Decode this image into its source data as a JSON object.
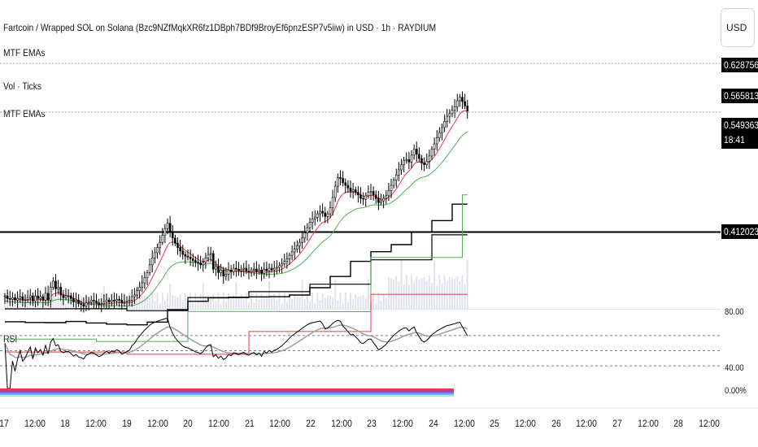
{
  "header": {
    "title": "Fartcoin / Wrapped SOL on Solana (Bzc9NZfMqkXR6fz1DBph7BDf9BroyEf6pnzESP7v5iiw) in USD · 1h · RAYDIUM",
    "currency": "USD"
  },
  "indicators": [
    "MTF EMAs",
    "Vol · Ticks",
    "MTF EMAs",
    "RSI"
  ],
  "price_tags": [
    {
      "label": "0.628756",
      "color": "#000000"
    },
    {
      "label": "0.565813",
      "color": "#000000"
    },
    {
      "label": "0.549363",
      "color": "#000000"
    },
    {
      "label": "18:41",
      "color": "#000000"
    },
    {
      "label": "0.412023",
      "color": "#000000"
    }
  ],
  "rsi_axis": [
    "80.00",
    "40.00",
    "0.00%"
  ],
  "time_axis": [
    "17",
    "12:00",
    "18",
    "12:00",
    "19",
    "12:00",
    "20",
    "12:00",
    "21",
    "12:00",
    "22",
    "12:00",
    "23",
    "12:00",
    "24",
    "12:00",
    "25",
    "12:00",
    "26",
    "12:00",
    "27",
    "12:00",
    "28",
    "12:00"
  ],
  "colors": {
    "ema_red": "#f23645",
    "ema_green": "#4caf50",
    "htf_line": "#000000",
    "rsi": "#000000",
    "rsi_ma": "#9e9e9e",
    "volume": "#e0e3eb"
  },
  "chart_data": {
    "type": "candlestick",
    "x_start": "17 Jan 00:00",
    "x_step": "1h",
    "horizontal_lines": [
      0.628756,
      0.565813,
      0.412023
    ],
    "close": [
      0.335,
      0.332,
      0.331,
      0.333,
      0.33,
      0.332,
      0.334,
      0.33,
      0.331,
      0.333,
      0.335,
      0.329,
      0.335,
      0.332,
      0.334,
      0.33,
      0.338,
      0.33,
      0.345,
      0.352,
      0.343,
      0.345,
      0.336,
      0.333,
      0.335,
      0.335,
      0.332,
      0.328,
      0.33,
      0.326,
      0.325,
      0.323,
      0.327,
      0.328,
      0.33,
      0.329,
      0.327,
      0.325,
      0.326,
      0.328,
      0.33,
      0.328,
      0.33,
      0.329,
      0.331,
      0.33,
      0.327,
      0.328,
      0.329,
      0.33,
      0.334,
      0.336,
      0.341,
      0.345,
      0.35,
      0.356,
      0.362,
      0.371,
      0.379,
      0.385,
      0.391,
      0.397,
      0.405,
      0.413,
      0.419,
      0.409,
      0.402,
      0.396,
      0.391,
      0.387,
      0.383,
      0.381,
      0.38,
      0.378,
      0.376,
      0.374,
      0.373,
      0.371,
      0.374,
      0.379,
      0.383,
      0.384,
      0.366,
      0.369,
      0.362,
      0.365,
      0.358,
      0.36,
      0.365,
      0.363,
      0.367,
      0.366,
      0.364,
      0.366,
      0.367,
      0.364,
      0.363,
      0.365,
      0.366,
      0.363,
      0.365,
      0.361,
      0.366,
      0.364,
      0.367,
      0.365,
      0.367,
      0.368,
      0.37,
      0.372,
      0.375,
      0.378,
      0.382,
      0.386,
      0.389,
      0.393,
      0.397,
      0.402,
      0.408,
      0.414,
      0.42,
      0.424,
      0.426,
      0.43,
      0.433,
      0.431,
      0.427,
      0.43,
      0.437,
      0.449,
      0.462,
      0.472,
      0.471,
      0.466,
      0.463,
      0.46,
      0.456,
      0.458,
      0.455,
      0.452,
      0.448,
      0.447,
      0.451,
      0.455,
      0.456,
      0.452,
      0.448,
      0.443,
      0.445,
      0.448,
      0.451,
      0.457,
      0.463,
      0.469,
      0.475,
      0.481,
      0.487,
      0.492,
      0.493,
      0.49,
      0.498,
      0.505,
      0.499,
      0.494,
      0.489,
      0.487,
      0.491,
      0.497,
      0.505,
      0.511,
      0.518,
      0.524,
      0.53,
      0.537,
      0.543,
      0.546,
      0.55,
      0.554,
      0.561,
      0.565,
      0.56,
      0.555,
      0.549
    ],
    "rsi_range": [
      0,
      100
    ],
    "price_range": [
      0.32,
      0.64
    ]
  }
}
